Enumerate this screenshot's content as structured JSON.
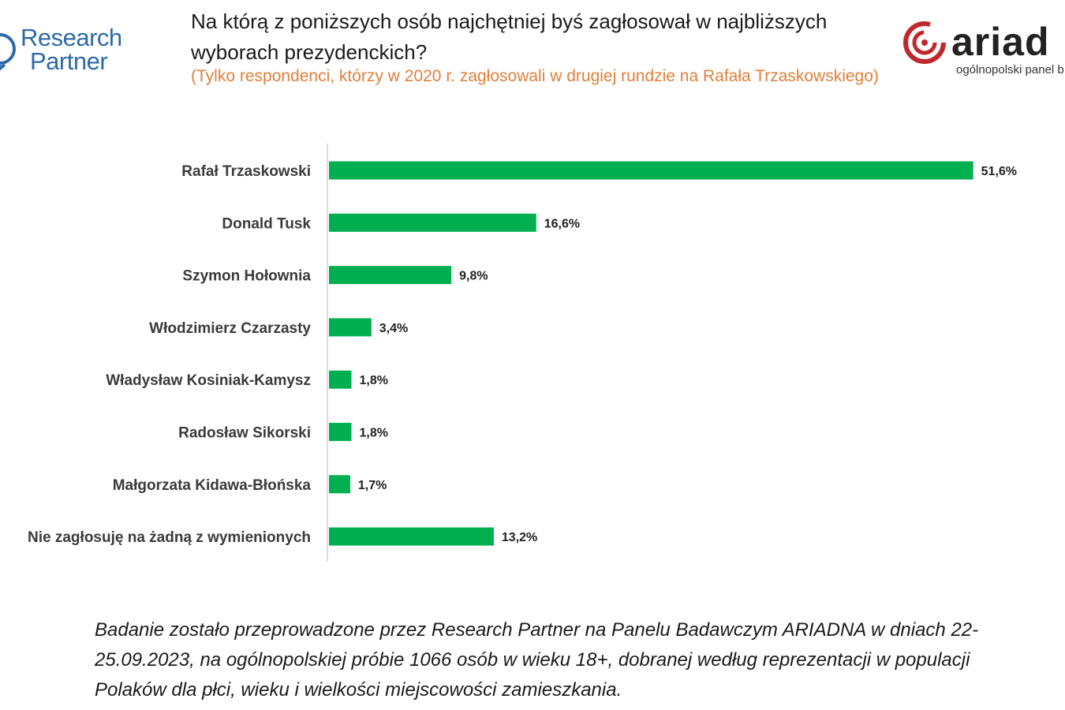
{
  "header": {
    "title": "Na którą z poniższych osób najchętniej byś zagłosował w najbliższych wyborach prezydenckich?",
    "subtitle": "(Tylko respondenci, którzy w 2020 r. zagłosowali w drugiej rundzie na Rafała Trzaskowskiego)"
  },
  "logos": {
    "research_partner_line1": "Research",
    "research_partner_line2": "Partner",
    "ariadna_word": "ariad",
    "ariadna_tagline": "ogólnopolski panel b"
  },
  "colors": {
    "bar": "#00b050",
    "subtitle": "#e0803a",
    "logo_blue": "#2e6aa8",
    "logo_red": "#c0282d"
  },
  "chart_data": {
    "type": "bar",
    "orientation": "horizontal",
    "categories": [
      "Rafał Trzaskowski",
      "Donald Tusk",
      "Szymon Hołownia",
      "Włodzimierz Czarzasty",
      "Władysław Kosiniak-Kamysz",
      "Radosław Sikorski",
      "Małgorzata Kidawa-Błońska",
      "Nie zagłosuję na żadną z wymienionych"
    ],
    "values": [
      51.6,
      16.6,
      9.8,
      3.4,
      1.8,
      1.8,
      1.7,
      13.2
    ],
    "value_labels": [
      "51,6%",
      "16,6%",
      "9,8%",
      "3,4%",
      "1,8%",
      "1,8%",
      "1,7%",
      "13,2%"
    ],
    "title": "",
    "xlabel": "",
    "ylabel": "",
    "xlim": [
      0,
      52
    ],
    "grid": false,
    "legend": "none"
  },
  "footnote": "Badanie zostało przeprowadzone przez Research Partner na Panelu Badawczym ARIADNA w dniach 22-25.09.2023, na ogólnopolskiej próbie 1066 osób w wieku 18+, dobranej według reprezentacji w populacji Polaków dla płci, wieku i wielkości miejscowości zamieszkania."
}
